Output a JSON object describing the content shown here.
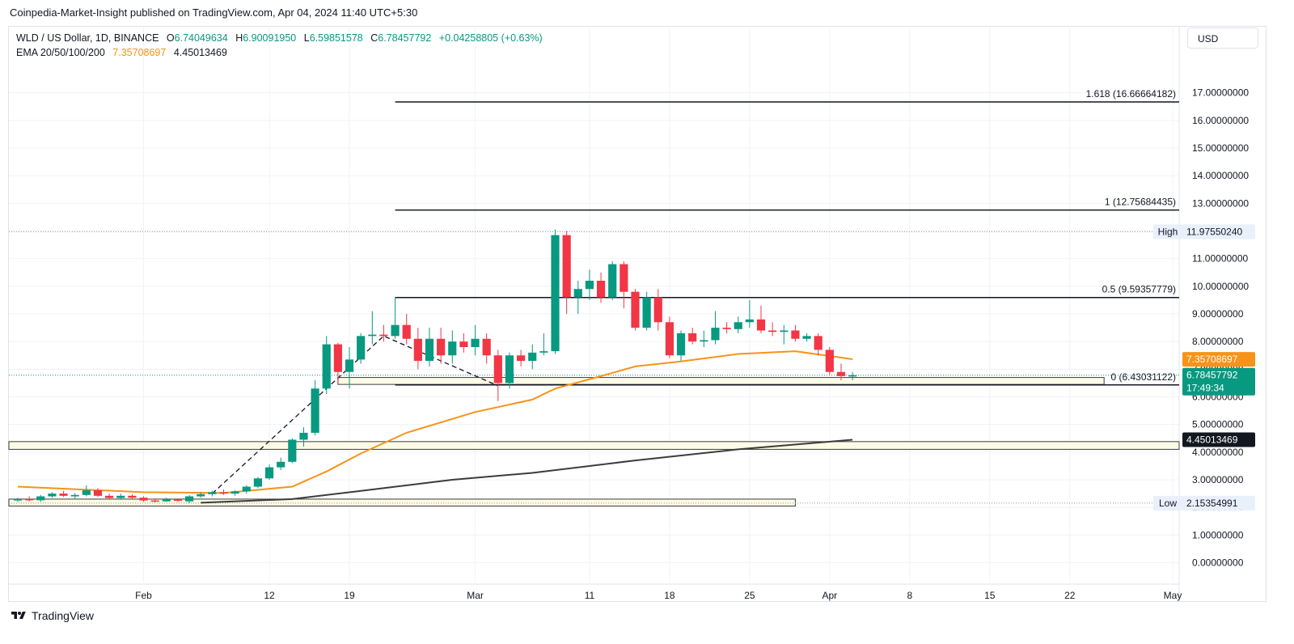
{
  "header": {
    "text": "Coinpedia-Market-Insight published on TradingView.com, Apr 04, 2024 11:40 UTC+5:30"
  },
  "legend": {
    "symbol": "WLD / US Dollar, 1D, BINANCE",
    "open_label": "O",
    "open": "6.74049634",
    "high_label": "H",
    "high": "6.90091950",
    "low_label": "L",
    "low": "6.59851578",
    "close_label": "C",
    "close": "6.78457792",
    "change": "+0.04258805 (+0.63%)",
    "ema_label": "EMA 20/50/100/200",
    "ema_value_1": "7.35708697",
    "ema_value_2": "4.45013469"
  },
  "currency_button": "USD",
  "footer": {
    "brand": "TradingView"
  },
  "colors": {
    "up": "#089981",
    "down": "#f23645",
    "ema_short": "#f7931a",
    "ema_long": "#3c3c3c",
    "zone_fill": "#fdfbe6",
    "zone_border": "#3c3c3c"
  },
  "chart_data": {
    "type": "candlestick",
    "ylim": [
      -0.6,
      18.6
    ],
    "y_ticks": [
      "0.00000000",
      "1.00000000",
      "2.00000000",
      "3.00000000",
      "4.00000000",
      "5.00000000",
      "6.00000000",
      "7.00000000",
      "8.00000000",
      "9.00000000",
      "10.00000000",
      "11.00000000",
      "12.00000000",
      "13.00000000",
      "14.00000000",
      "15.00000000",
      "16.00000000",
      "17.00000000"
    ],
    "x_start": "2024-01-21",
    "x_end": "2024-05-01",
    "x_ticks": [
      {
        "date": "2024-02-01",
        "label": "Feb"
      },
      {
        "date": "2024-02-12",
        "label": "12"
      },
      {
        "date": "2024-02-19",
        "label": "19"
      },
      {
        "date": "2024-03-01",
        "label": "Mar"
      },
      {
        "date": "2024-03-11",
        "label": "11"
      },
      {
        "date": "2024-03-18",
        "label": "18"
      },
      {
        "date": "2024-03-25",
        "label": "25"
      },
      {
        "date": "2024-04-01",
        "label": "Apr"
      },
      {
        "date": "2024-04-08",
        "label": "8"
      },
      {
        "date": "2024-04-15",
        "label": "15"
      },
      {
        "date": "2024-04-22",
        "label": "22"
      },
      {
        "date": "2024-05-01",
        "label": "May"
      }
    ],
    "candles": [
      {
        "date": "2024-01-21",
        "o": 2.25,
        "h": 2.35,
        "l": 2.2,
        "c": 2.3
      },
      {
        "date": "2024-01-22",
        "o": 2.3,
        "h": 2.4,
        "l": 2.22,
        "c": 2.28
      },
      {
        "date": "2024-01-23",
        "o": 2.26,
        "h": 2.45,
        "l": 2.2,
        "c": 2.4
      },
      {
        "date": "2024-01-24",
        "o": 2.4,
        "h": 2.55,
        "l": 2.35,
        "c": 2.5
      },
      {
        "date": "2024-01-25",
        "o": 2.5,
        "h": 2.6,
        "l": 2.38,
        "c": 2.42
      },
      {
        "date": "2024-01-26",
        "o": 2.4,
        "h": 2.52,
        "l": 2.32,
        "c": 2.45
      },
      {
        "date": "2024-01-27",
        "o": 2.45,
        "h": 2.8,
        "l": 2.4,
        "c": 2.62
      },
      {
        "date": "2024-01-28",
        "o": 2.62,
        "h": 2.7,
        "l": 2.38,
        "c": 2.42
      },
      {
        "date": "2024-01-29",
        "o": 2.42,
        "h": 2.5,
        "l": 2.3,
        "c": 2.34
      },
      {
        "date": "2024-01-30",
        "o": 2.34,
        "h": 2.5,
        "l": 2.28,
        "c": 2.42
      },
      {
        "date": "2024-01-31",
        "o": 2.42,
        "h": 2.48,
        "l": 2.3,
        "c": 2.35
      },
      {
        "date": "2024-02-01",
        "o": 2.35,
        "h": 2.4,
        "l": 2.2,
        "c": 2.25
      },
      {
        "date": "2024-02-02",
        "o": 2.25,
        "h": 2.32,
        "l": 2.18,
        "c": 2.22
      },
      {
        "date": "2024-02-03",
        "o": 2.22,
        "h": 2.35,
        "l": 2.2,
        "c": 2.3
      },
      {
        "date": "2024-02-04",
        "o": 2.3,
        "h": 2.33,
        "l": 2.2,
        "c": 2.24
      },
      {
        "date": "2024-02-05",
        "o": 2.22,
        "h": 2.45,
        "l": 2.15,
        "c": 2.4
      },
      {
        "date": "2024-02-06",
        "o": 2.4,
        "h": 2.55,
        "l": 2.35,
        "c": 2.48
      },
      {
        "date": "2024-02-07",
        "o": 2.48,
        "h": 2.6,
        "l": 2.4,
        "c": 2.55
      },
      {
        "date": "2024-02-08",
        "o": 2.55,
        "h": 2.65,
        "l": 2.45,
        "c": 2.5
      },
      {
        "date": "2024-02-09",
        "o": 2.5,
        "h": 2.62,
        "l": 2.42,
        "c": 2.58
      },
      {
        "date": "2024-02-10",
        "o": 2.58,
        "h": 2.8,
        "l": 2.5,
        "c": 2.75
      },
      {
        "date": "2024-02-11",
        "o": 2.75,
        "h": 3.1,
        "l": 2.7,
        "c": 3.05
      },
      {
        "date": "2024-02-12",
        "o": 3.05,
        "h": 3.55,
        "l": 3.0,
        "c": 3.45
      },
      {
        "date": "2024-02-13",
        "o": 3.45,
        "h": 3.8,
        "l": 3.35,
        "c": 3.65
      },
      {
        "date": "2024-02-14",
        "o": 3.65,
        "h": 4.5,
        "l": 3.6,
        "c": 4.45
      },
      {
        "date": "2024-02-15",
        "o": 4.45,
        "h": 4.9,
        "l": 4.2,
        "c": 4.7
      },
      {
        "date": "2024-02-16",
        "o": 4.7,
        "h": 6.6,
        "l": 4.6,
        "c": 6.3
      },
      {
        "date": "2024-02-17",
        "o": 6.3,
        "h": 8.2,
        "l": 6.1,
        "c": 7.9
      },
      {
        "date": "2024-02-18",
        "o": 7.9,
        "h": 7.95,
        "l": 6.5,
        "c": 6.9
      },
      {
        "date": "2024-02-19",
        "o": 6.9,
        "h": 7.8,
        "l": 6.3,
        "c": 7.35
      },
      {
        "date": "2024-02-20",
        "o": 7.35,
        "h": 8.3,
        "l": 7.2,
        "c": 8.2
      },
      {
        "date": "2024-02-21",
        "o": 8.2,
        "h": 9.1,
        "l": 7.9,
        "c": 8.25
      },
      {
        "date": "2024-02-22",
        "o": 8.25,
        "h": 8.6,
        "l": 8.0,
        "c": 8.2
      },
      {
        "date": "2024-02-23",
        "o": 8.2,
        "h": 9.6,
        "l": 8.1,
        "c": 8.6
      },
      {
        "date": "2024-02-24",
        "o": 8.6,
        "h": 9.0,
        "l": 7.9,
        "c": 8.1
      },
      {
        "date": "2024-02-25",
        "o": 8.1,
        "h": 8.5,
        "l": 7.0,
        "c": 7.3
      },
      {
        "date": "2024-02-26",
        "o": 7.3,
        "h": 8.5,
        "l": 7.1,
        "c": 8.1
      },
      {
        "date": "2024-02-27",
        "o": 8.1,
        "h": 8.5,
        "l": 7.2,
        "c": 7.5
      },
      {
        "date": "2024-02-28",
        "o": 7.5,
        "h": 8.4,
        "l": 7.2,
        "c": 8.0
      },
      {
        "date": "2024-02-29",
        "o": 8.0,
        "h": 8.3,
        "l": 7.6,
        "c": 7.8
      },
      {
        "date": "2024-03-01",
        "o": 7.8,
        "h": 8.6,
        "l": 7.5,
        "c": 8.1
      },
      {
        "date": "2024-03-02",
        "o": 8.1,
        "h": 8.3,
        "l": 7.2,
        "c": 7.5
      },
      {
        "date": "2024-03-03",
        "o": 7.5,
        "h": 7.7,
        "l": 5.85,
        "c": 6.5
      },
      {
        "date": "2024-03-04",
        "o": 6.5,
        "h": 7.6,
        "l": 6.3,
        "c": 7.5
      },
      {
        "date": "2024-03-05",
        "o": 7.5,
        "h": 7.7,
        "l": 7.1,
        "c": 7.3
      },
      {
        "date": "2024-03-06",
        "o": 7.3,
        "h": 7.9,
        "l": 7.0,
        "c": 7.6
      },
      {
        "date": "2024-03-07",
        "o": 7.6,
        "h": 8.3,
        "l": 7.5,
        "c": 7.65
      },
      {
        "date": "2024-03-08",
        "o": 7.65,
        "h": 12.05,
        "l": 7.55,
        "c": 11.85
      },
      {
        "date": "2024-03-09",
        "o": 11.85,
        "h": 12.0,
        "l": 9.0,
        "c": 9.6
      },
      {
        "date": "2024-03-10",
        "o": 9.6,
        "h": 10.2,
        "l": 9.0,
        "c": 9.9
      },
      {
        "date": "2024-03-11",
        "o": 9.9,
        "h": 10.6,
        "l": 9.5,
        "c": 10.2
      },
      {
        "date": "2024-03-12",
        "o": 10.2,
        "h": 10.5,
        "l": 9.4,
        "c": 9.6
      },
      {
        "date": "2024-03-13",
        "o": 9.6,
        "h": 10.9,
        "l": 9.5,
        "c": 10.8
      },
      {
        "date": "2024-03-14",
        "o": 10.8,
        "h": 10.9,
        "l": 9.2,
        "c": 9.8
      },
      {
        "date": "2024-03-15",
        "o": 9.8,
        "h": 9.9,
        "l": 8.4,
        "c": 8.5
      },
      {
        "date": "2024-03-16",
        "o": 8.5,
        "h": 9.8,
        "l": 8.4,
        "c": 9.6
      },
      {
        "date": "2024-03-17",
        "o": 9.6,
        "h": 9.9,
        "l": 8.4,
        "c": 8.7
      },
      {
        "date": "2024-03-18",
        "o": 8.7,
        "h": 8.9,
        "l": 7.4,
        "c": 7.5
      },
      {
        "date": "2024-03-19",
        "o": 7.5,
        "h": 8.4,
        "l": 7.3,
        "c": 8.3
      },
      {
        "date": "2024-03-20",
        "o": 8.3,
        "h": 8.5,
        "l": 7.9,
        "c": 8.0
      },
      {
        "date": "2024-03-21",
        "o": 8.0,
        "h": 8.4,
        "l": 7.8,
        "c": 8.05
      },
      {
        "date": "2024-03-22",
        "o": 8.05,
        "h": 9.1,
        "l": 7.9,
        "c": 8.5
      },
      {
        "date": "2024-03-23",
        "o": 8.5,
        "h": 8.7,
        "l": 8.3,
        "c": 8.45
      },
      {
        "date": "2024-03-24",
        "o": 8.45,
        "h": 8.9,
        "l": 8.3,
        "c": 8.7
      },
      {
        "date": "2024-03-25",
        "o": 8.7,
        "h": 9.5,
        "l": 8.5,
        "c": 8.8
      },
      {
        "date": "2024-03-26",
        "o": 8.8,
        "h": 9.3,
        "l": 8.3,
        "c": 8.4
      },
      {
        "date": "2024-03-27",
        "o": 8.4,
        "h": 8.7,
        "l": 8.2,
        "c": 8.35
      },
      {
        "date": "2024-03-28",
        "o": 8.35,
        "h": 8.6,
        "l": 7.9,
        "c": 8.4
      },
      {
        "date": "2024-03-29",
        "o": 8.4,
        "h": 8.6,
        "l": 8.0,
        "c": 8.1
      },
      {
        "date": "2024-03-30",
        "o": 8.1,
        "h": 8.3,
        "l": 8.0,
        "c": 8.2
      },
      {
        "date": "2024-03-31",
        "o": 8.2,
        "h": 8.3,
        "l": 7.5,
        "c": 7.7
      },
      {
        "date": "2024-04-01",
        "o": 7.7,
        "h": 7.8,
        "l": 6.8,
        "c": 6.9
      },
      {
        "date": "2024-04-02",
        "o": 6.9,
        "h": 7.2,
        "l": 6.6,
        "c": 6.75
      },
      {
        "date": "2024-04-03",
        "o": 6.74,
        "h": 6.9,
        "l": 6.6,
        "c": 6.78
      }
    ],
    "ema_short": {
      "value": 7.35708697,
      "points": [
        {
          "date": "2024-01-21",
          "v": 2.75
        },
        {
          "date": "2024-02-01",
          "v": 2.55
        },
        {
          "date": "2024-02-08",
          "v": 2.52
        },
        {
          "date": "2024-02-14",
          "v": 2.75
        },
        {
          "date": "2024-02-17",
          "v": 3.3
        },
        {
          "date": "2024-02-20",
          "v": 3.95
        },
        {
          "date": "2024-02-24",
          "v": 4.7
        },
        {
          "date": "2024-03-01",
          "v": 5.45
        },
        {
          "date": "2024-03-06",
          "v": 5.9
        },
        {
          "date": "2024-03-08",
          "v": 6.3
        },
        {
          "date": "2024-03-12",
          "v": 6.75
        },
        {
          "date": "2024-03-15",
          "v": 7.1
        },
        {
          "date": "2024-03-19",
          "v": 7.28
        },
        {
          "date": "2024-03-24",
          "v": 7.55
        },
        {
          "date": "2024-03-29",
          "v": 7.65
        },
        {
          "date": "2024-04-03",
          "v": 7.36
        }
      ]
    },
    "ema_long": {
      "value": 4.45013469,
      "points": [
        {
          "date": "2024-02-06",
          "v": 2.17
        },
        {
          "date": "2024-02-14",
          "v": 2.3
        },
        {
          "date": "2024-02-20",
          "v": 2.6
        },
        {
          "date": "2024-02-28",
          "v": 3.0
        },
        {
          "date": "2024-03-06",
          "v": 3.25
        },
        {
          "date": "2024-03-15",
          "v": 3.7
        },
        {
          "date": "2024-03-24",
          "v": 4.1
        },
        {
          "date": "2024-04-03",
          "v": 4.45
        }
      ]
    },
    "trend_line": [
      {
        "date": "2024-02-07",
        "v": 2.5
      },
      {
        "date": "2024-02-22",
        "v": 8.2
      },
      {
        "date": "2024-03-03",
        "v": 6.4
      }
    ],
    "fib_levels": [
      {
        "ratio": "1.618",
        "value": 16.66664182,
        "label": "1.618 (16.66664182)"
      },
      {
        "ratio": "1",
        "value": 12.75684435,
        "label": "1 (12.75684435)"
      },
      {
        "ratio": "0.5",
        "value": 9.59357779,
        "label": "0.5 (9.59357779)"
      },
      {
        "ratio": "0",
        "value": 6.43031122,
        "label": "0 (6.43031122)"
      }
    ],
    "fib_start": "2024-02-23",
    "zones": [
      {
        "name": "support-zone-upper",
        "from": 6.45,
        "to": 6.7,
        "start": "2024-02-18",
        "end": "2024-04-25"
      },
      {
        "name": "support-zone-mid",
        "from": 4.1,
        "to": 4.38,
        "start": "2024-01-21",
        "end": "2024-05-01"
      },
      {
        "name": "support-zone-low",
        "from": 2.05,
        "to": 2.3,
        "start": "2024-01-21",
        "end": "2024-03-29"
      }
    ],
    "high_marker": {
      "label": "High",
      "value": "11.97550240",
      "v": 11.9755024
    },
    "low_marker": {
      "label": "Low",
      "value": "2.15354991",
      "v": 2.15354991
    },
    "last_price": {
      "value": "6.78457792",
      "v": 6.78457792,
      "countdown": "17:49:34"
    },
    "ema_tag_1": {
      "value": "7.35708697",
      "v": 7.35708697
    },
    "ema_tag_2": {
      "value": "4.45013469",
      "v": 4.45013469
    }
  }
}
